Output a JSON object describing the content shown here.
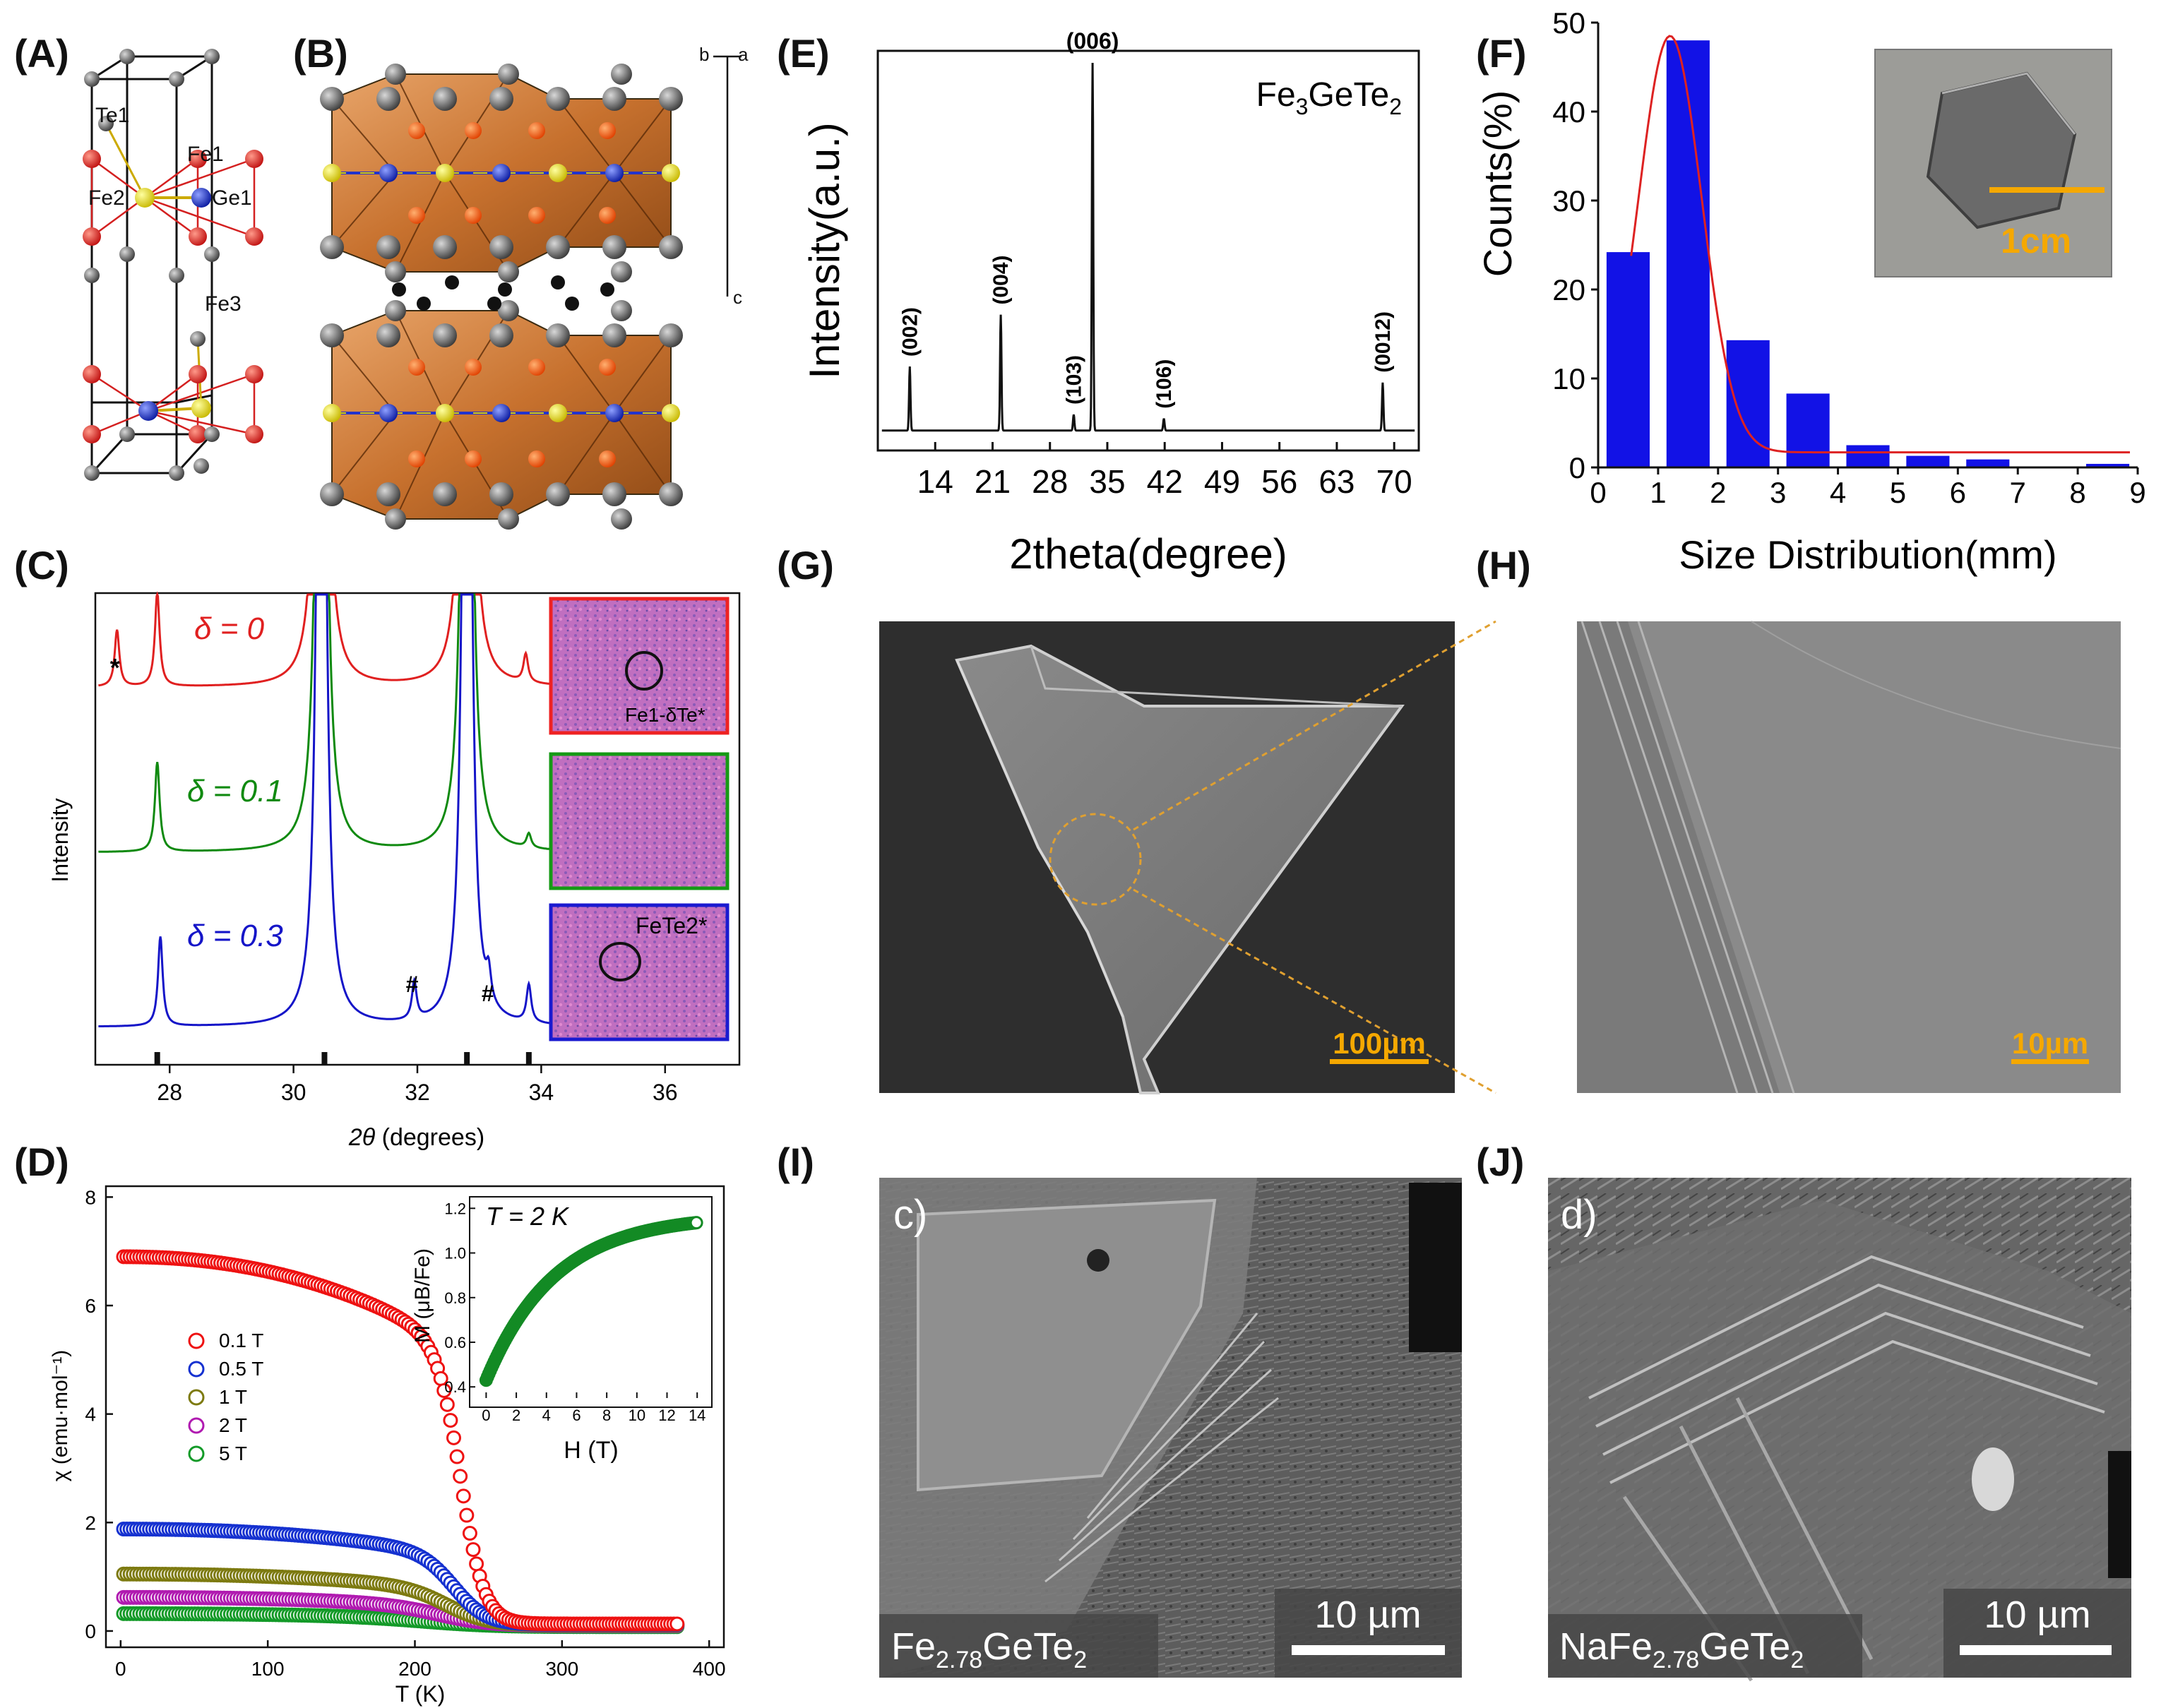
{
  "panel_labels": {
    "A": "(A)",
    "B": "(B)",
    "C": "(C)",
    "D": "(D)",
    "E": "(E)",
    "F": "(F)",
    "G": "(G)",
    "H": "(H)",
    "I": "(I)",
    "J": "(J)"
  },
  "panelA": {
    "atoms": {
      "te1": "Te1",
      "fe1": "Fe1",
      "fe2": "Fe2",
      "ge1": "Ge1",
      "fe3": "Fe3"
    }
  },
  "panelB": {
    "axes": {
      "a": "a",
      "b": "b",
      "c": "c"
    }
  },
  "chart_data": [
    {
      "id": "E",
      "type": "line",
      "title": "Fe3GeTe2",
      "title_parts": {
        "fe": "Fe",
        "s1": "3",
        "mid": "GeTe",
        "s2": "2"
      },
      "xlabel": "2theta(degree)",
      "ylabel": "Intensity(a.u.)",
      "xlim": [
        7,
        73
      ],
      "xticks": [
        14,
        21,
        28,
        35,
        42,
        49,
        56,
        63,
        70
      ],
      "baseline": 0.05,
      "peaks": [
        {
          "x": 10.9,
          "h": 0.16,
          "label": "(002)"
        },
        {
          "x": 22.0,
          "h": 0.29,
          "label": "(004)"
        },
        {
          "x": 30.9,
          "h": 0.04,
          "label": "(103)"
        },
        {
          "x": 33.2,
          "h": 0.92,
          "label": "(006)"
        },
        {
          "x": 41.9,
          "h": 0.03,
          "label": "(106)"
        },
        {
          "x": 68.6,
          "h": 0.12,
          "label": "(0012)"
        }
      ]
    },
    {
      "id": "F",
      "type": "bar",
      "xlabel": "Size Distribution(mm)",
      "ylabel": "Counts(%)",
      "xlim": [
        0,
        9
      ],
      "ylim": [
        0,
        50
      ],
      "xticks": [
        0,
        1,
        2,
        3,
        4,
        5,
        6,
        7,
        8,
        9
      ],
      "yticks": [
        0,
        10,
        20,
        30,
        40,
        50
      ],
      "bars": [
        {
          "x": 0.5,
          "y": 24.2
        },
        {
          "x": 1.5,
          "y": 48.0
        },
        {
          "x": 2.5,
          "y": 14.3
        },
        {
          "x": 3.5,
          "y": 8.3
        },
        {
          "x": 4.5,
          "y": 2.5
        },
        {
          "x": 5.5,
          "y": 1.3
        },
        {
          "x": 6.5,
          "y": 0.9
        },
        {
          "x": 8.5,
          "y": 0.4
        }
      ],
      "fit": {
        "color": "#dd2222",
        "peak_x": 1.2,
        "peak_y": 48.5,
        "tail": 1.7
      },
      "inset_scale": "1cm"
    },
    {
      "id": "C",
      "type": "line",
      "xlabel_sym": "2θ",
      "xlabel_unit": " (degrees)",
      "ylabel": "Intensity",
      "xlim": [
        26.8,
        37.2
      ],
      "xticks": [
        28,
        30,
        32,
        34,
        36
      ],
      "ref_ticks": [
        27.8,
        30.5,
        32.8,
        33.8
      ],
      "series": [
        {
          "name": "δ = 0",
          "color": "#e02020",
          "offset": 0.8,
          "peaks": [
            [
              27.15,
              0.12
            ],
            [
              27.8,
              0.2
            ],
            [
              30.45,
              3
            ],
            [
              32.8,
              3
            ],
            [
              33.75,
              0.06
            ]
          ],
          "annotation": "Fe1-δTe*",
          "mark": "*"
        },
        {
          "name": "δ = 0.1",
          "color": "#108a10",
          "offset": 0.45,
          "peaks": [
            [
              27.8,
              0.19
            ],
            [
              30.45,
              3
            ],
            [
              32.8,
              3
            ],
            [
              33.8,
              0.03
            ]
          ]
        },
        {
          "name": "δ = 0.3",
          "color": "#1515c8",
          "offset": 0.08,
          "peaks": [
            [
              27.85,
              0.19
            ],
            [
              30.45,
              3
            ],
            [
              32.8,
              3
            ],
            [
              31.95,
              0.08
            ],
            [
              33.15,
              0.06
            ],
            [
              33.8,
              0.08
            ]
          ],
          "annotation": "FeTe2*",
          "marks": [
            "#",
            "#"
          ]
        }
      ]
    },
    {
      "id": "D",
      "type": "scatter",
      "xlabel": "T (K)",
      "ylabel": "χ (emu·mol⁻¹)",
      "xlim": [
        -10,
        410
      ],
      "ylim": [
        -0.3,
        8.2
      ],
      "xticks": [
        0,
        100,
        200,
        300,
        400
      ],
      "yticks": [
        0,
        2,
        4,
        6,
        8
      ],
      "series": [
        {
          "name": "0.1 T",
          "color": "#ee1111",
          "start": 6.9,
          "tc": 232,
          "width": 8,
          "tail": 0.13
        },
        {
          "name": "0.5 T",
          "color": "#1531d0",
          "start": 1.88,
          "tc": 228,
          "width": 11,
          "tail": 0.12
        },
        {
          "name": "1 T",
          "color": "#7d7a10",
          "start": 1.05,
          "tc": 224,
          "width": 14,
          "tail": 0.11
        },
        {
          "name": "2 T",
          "color": "#b01ab0",
          "start": 0.62,
          "tc": 220,
          "width": 18,
          "tail": 0.1
        },
        {
          "name": "5 T",
          "color": "#139a28",
          "start": 0.32,
          "tc": 215,
          "width": 25,
          "tail": 0.08
        }
      ],
      "inset": {
        "title": "T = 2 K",
        "xlabel": "H (T)",
        "ylabel": "M (μB/Fe)",
        "xlim": [
          -0.3,
          14.6
        ],
        "ylim": [
          0.35,
          1.22
        ],
        "xticks": [
          0,
          2,
          4,
          6,
          8,
          10,
          12,
          14
        ],
        "yticks": [
          0.4,
          0.6,
          0.8,
          1.0,
          1.2
        ],
        "ytick_labels": [
          "0.4",
          "0.6",
          "0.8",
          "1.0",
          "1.2"
        ],
        "series": {
          "color": "#138a24",
          "m0": 0.43,
          "m_sat": 1.17,
          "rate": 0.22
        }
      }
    }
  ],
  "sem": {
    "G": {
      "scale": "100µm"
    },
    "H": {
      "scale": "10µm"
    },
    "I": {
      "corner": "c)",
      "scale": "10 µm",
      "sample_parts": {
        "a": "Fe",
        "s": "2.78",
        "b": "GeTe",
        "s2": "2"
      }
    },
    "J": {
      "corner": "d)",
      "scale": "10 µm",
      "sample_parts": {
        "a": "NaFe",
        "s": "2.78",
        "b": "GeTe",
        "s2": "2"
      }
    }
  }
}
